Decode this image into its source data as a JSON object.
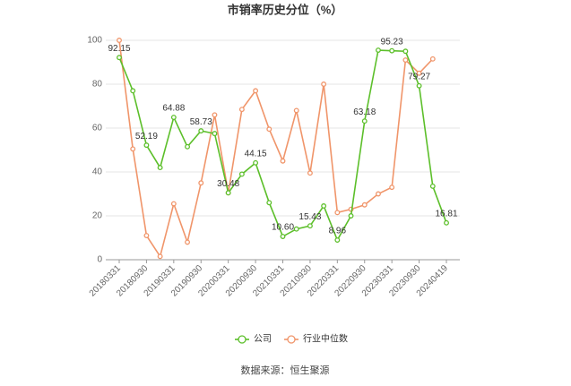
{
  "chart_data": {
    "type": "line",
    "title": "市销率历史分位（%）",
    "categories": [
      "20180331",
      null,
      "20180930",
      null,
      "20190331",
      null,
      "20190930",
      null,
      "20200331",
      null,
      "20200930",
      null,
      "20210331",
      null,
      "20210930",
      null,
      "20220331",
      null,
      "20220930",
      null,
      "20230331",
      null,
      "20230930",
      null,
      "20240419"
    ],
    "series": [
      {
        "name": "公司",
        "color": "#5cbf2a",
        "values": [
          92.15,
          77,
          52.19,
          42,
          64.88,
          51.5,
          58.73,
          57.5,
          30.48,
          39,
          44.15,
          26,
          10.6,
          14,
          15.43,
          24.5,
          8.96,
          20,
          63.18,
          95.5,
          95.23,
          95,
          79.27,
          33.5,
          16.81
        ],
        "value_labels": [
          "92.15",
          null,
          "52.19",
          null,
          "64.88",
          null,
          "58.73",
          null,
          "30.48",
          null,
          "44.15",
          null,
          "10.60",
          null,
          "15.43",
          null,
          "8.96",
          null,
          "63.18",
          null,
          "95.23",
          null,
          "79.27",
          null,
          "16.81"
        ]
      },
      {
        "name": "行业中位数",
        "color": "#f0956a",
        "values": [
          100,
          50.5,
          11,
          1.5,
          25.5,
          8,
          35,
          66,
          30.5,
          68.5,
          77,
          59.5,
          45,
          68,
          39.5,
          80,
          21.5,
          23,
          25,
          30,
          33,
          91,
          85,
          91.5,
          null
        ]
      }
    ],
    "ylim": [
      0,
      100
    ],
    "yticks": [
      0,
      20,
      40,
      60,
      80,
      100
    ],
    "grid": true,
    "source": "数据来源：恒生聚源"
  }
}
